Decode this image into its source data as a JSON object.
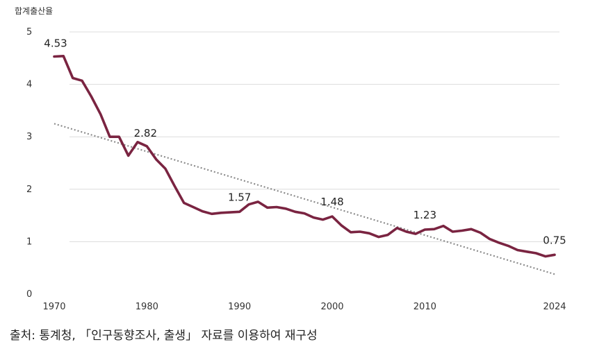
{
  "chart_data": {
    "type": "line",
    "ylabel": "합계출산율",
    "xlabel": "",
    "ylim": [
      0,
      5
    ],
    "xlim": [
      1970,
      2024
    ],
    "yticks": [
      "0",
      "1",
      "2",
      "3",
      "4",
      "5"
    ],
    "xticks": [
      "1970",
      "1980",
      "1990",
      "2000",
      "2010",
      "2024"
    ],
    "grid": true,
    "series": [
      {
        "name": "합계출산율",
        "color": "#7a2441",
        "x": [
          1970,
          1971,
          1972,
          1973,
          1974,
          1975,
          1976,
          1977,
          1978,
          1979,
          1980,
          1981,
          1982,
          1983,
          1984,
          1985,
          1986,
          1987,
          1988,
          1989,
          1990,
          1991,
          1992,
          1993,
          1994,
          1995,
          1996,
          1997,
          1998,
          1999,
          2000,
          2001,
          2002,
          2003,
          2004,
          2005,
          2006,
          2007,
          2008,
          2009,
          2010,
          2011,
          2012,
          2013,
          2014,
          2015,
          2016,
          2017,
          2018,
          2019,
          2020,
          2021,
          2022,
          2023,
          2024
        ],
        "values": [
          4.53,
          4.54,
          4.12,
          4.07,
          3.77,
          3.43,
          3.0,
          3.0,
          2.64,
          2.9,
          2.82,
          2.57,
          2.39,
          2.06,
          1.74,
          1.66,
          1.58,
          1.53,
          1.55,
          1.56,
          1.57,
          1.71,
          1.76,
          1.65,
          1.66,
          1.63,
          1.57,
          1.54,
          1.46,
          1.42,
          1.48,
          1.31,
          1.18,
          1.19,
          1.16,
          1.09,
          1.13,
          1.26,
          1.19,
          1.15,
          1.23,
          1.24,
          1.3,
          1.19,
          1.21,
          1.24,
          1.17,
          1.05,
          0.98,
          0.92,
          0.84,
          0.81,
          0.78,
          0.72,
          0.75
        ]
      },
      {
        "name": "추세선",
        "color": "#8a8a8a",
        "style": "dotted",
        "x": [
          1970,
          2024
        ],
        "values": [
          3.25,
          0.38
        ]
      }
    ],
    "annotations": [
      {
        "x": 1970,
        "y": 4.53,
        "label": "4.53"
      },
      {
        "x": 1980,
        "y": 2.82,
        "label": "2.82"
      },
      {
        "x": 1990,
        "y": 1.57,
        "label": "1.57"
      },
      {
        "x": 2000,
        "y": 1.48,
        "label": "1.48"
      },
      {
        "x": 2010,
        "y": 1.23,
        "label": "1.23"
      },
      {
        "x": 2024,
        "y": 0.75,
        "label": "0.75"
      }
    ]
  },
  "source": "출처: 통계청, 「인구동향조사, 출생」 자료를 이용하여 재구성"
}
